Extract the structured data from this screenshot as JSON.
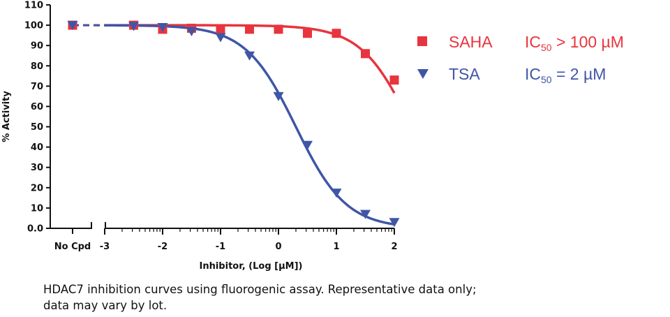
{
  "chart_data": {
    "type": "scatter",
    "title": "",
    "ylabel": "% Activity",
    "xlabel": "Inhibitor, (Log [µM])",
    "ylim": [
      0,
      110
    ],
    "xlim": [
      -3,
      2
    ],
    "y_ticks": [
      "0.0",
      "10",
      "20",
      "30",
      "40",
      "50",
      "60",
      "70",
      "80",
      "90",
      "100",
      "110"
    ],
    "x_ticks": [
      "-3",
      "-2",
      "-1",
      "0",
      "1",
      "2"
    ],
    "x_break_label": "No Cpd",
    "x_scale": "log10",
    "series": [
      {
        "name": "SAHA",
        "marker": "square",
        "color": "#e8343e",
        "no_cpd_value": 100,
        "x": [
          -2.5,
          -2,
          -1.5,
          -1,
          -0.5,
          0,
          0.5,
          1,
          1.5,
          2
        ],
        "values": [
          100,
          98,
          98.5,
          98,
          98,
          98,
          96,
          96,
          86,
          73
        ],
        "fit": {
          "top": 100,
          "bottom": 0,
          "log_ic50": 2.3,
          "hill": 1.0
        },
        "ic50_text": "> 100 µM"
      },
      {
        "name": "TSA",
        "marker": "triangle-down",
        "color": "#3f56a6",
        "no_cpd_value": 100,
        "x": [
          -2.5,
          -2,
          -1.5,
          -1,
          -0.5,
          0,
          0.5,
          1,
          1.5,
          2
        ],
        "values": [
          99.5,
          99,
          97,
          94,
          85,
          65,
          41,
          17.5,
          7,
          3
        ],
        "fit": {
          "top": 100,
          "bottom": 0,
          "log_ic50": 0.3,
          "hill": 1.0
        },
        "ic50_text": "= 2 µM"
      }
    ],
    "legend_position": "right",
    "ic50_prefix": "IC",
    "ic50_sub": "50"
  },
  "caption": "HDAC7 inhibition curves using fluorogenic assay. Representative data only; data may vary by lot."
}
